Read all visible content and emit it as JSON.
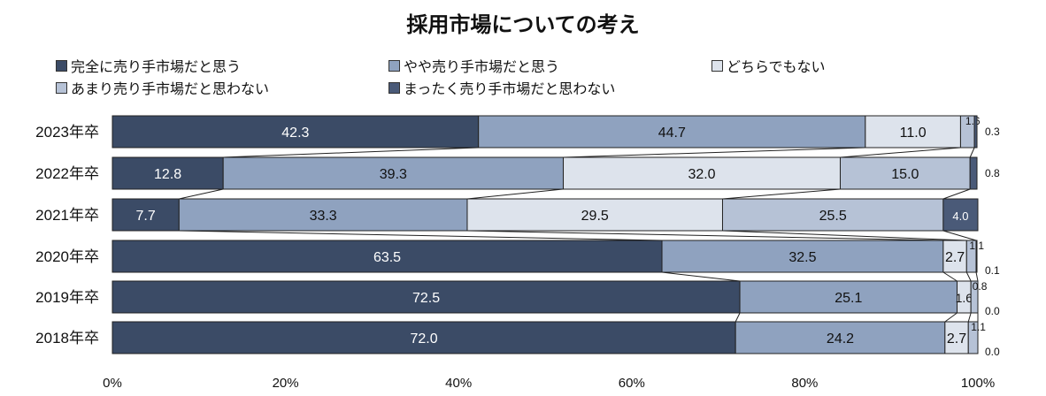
{
  "chart_data": {
    "type": "bar",
    "orientation": "horizontal",
    "stacked": true,
    "percent": true,
    "title": "採用市場についての考え",
    "categories": [
      "2023年卒",
      "2022年卒",
      "2021年卒",
      "2020年卒",
      "2019年卒",
      "2018年卒"
    ],
    "series": [
      {
        "name": "完全に売り手市場だと思う",
        "color": "#3b4b66",
        "values": [
          42.3,
          12.8,
          7.7,
          63.5,
          72.5,
          72.0
        ]
      },
      {
        "name": "やや売り手市場だと思う",
        "color": "#8fa2bf",
        "values": [
          44.7,
          39.3,
          33.3,
          32.5,
          25.1,
          24.2
        ]
      },
      {
        "name": "どちらでもない",
        "color": "#dde3ec",
        "values": [
          11.0,
          32.0,
          29.5,
          2.7,
          1.6,
          2.7
        ]
      },
      {
        "name": "あまり売り手市場だと思わない",
        "color": "#b6c2d6",
        "values": [
          1.6,
          15.0,
          25.5,
          1.1,
          0.8,
          1.1
        ]
      },
      {
        "name": "まったく売り手市場だと思わない",
        "color": "#4a5a78",
        "values": [
          0.3,
          0.8,
          4.0,
          0.1,
          0.0,
          0.0
        ]
      }
    ],
    "x_ticks": [
      "0%",
      "20%",
      "40%",
      "60%",
      "80%",
      "100%"
    ],
    "xlim": [
      0,
      100
    ],
    "legend_position": "top"
  }
}
